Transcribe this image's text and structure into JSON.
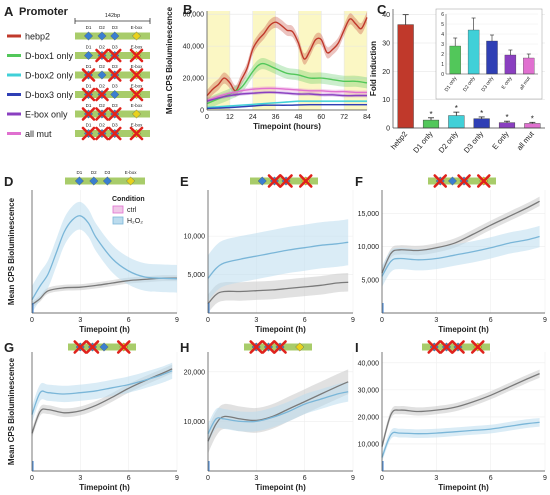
{
  "panel_a": {
    "letter": "A",
    "heading": "Promoter",
    "scale_label": "142bp",
    "rows": [
      {
        "label": "hebp2",
        "color": "#c0392b",
        "d1": "ok",
        "d2": "ok",
        "d3": "ok",
        "ebox": "ok"
      },
      {
        "label": "D-box1 only",
        "color": "#52c75a",
        "d1": "ok",
        "d2": "mut",
        "d3": "mut",
        "ebox": "mut"
      },
      {
        "label": "D-box2 only",
        "color": "#40d0d8",
        "d1": "mut",
        "d2": "ok",
        "d3": "mut",
        "ebox": "mut"
      },
      {
        "label": "D-box3 only",
        "color": "#2f3fb5",
        "d1": "mut",
        "d2": "mut",
        "d3": "ok",
        "ebox": "mut"
      },
      {
        "label": "E-box only",
        "color": "#8a3fc0",
        "d1": "mut",
        "d2": "mut",
        "d3": "mut",
        "ebox": "ok"
      },
      {
        "label": "all mut",
        "color": "#e070d0",
        "d1": "mut",
        "d2": "mut",
        "d3": "mut",
        "ebox": "mut"
      }
    ],
    "site_labels": {
      "d1": "D1",
      "d2": "D2",
      "d3": "D3",
      "ebox": "E-box"
    },
    "colors": {
      "bar": "#a8cc6a",
      "dbox": "#3a7fd0",
      "ebox": "#e8d21c",
      "cross": "#e0221c"
    }
  },
  "chart_data": [
    {
      "id": "B",
      "type": "line",
      "xlabel": "Timepoint (hours)",
      "ylabel": "Mean CPS Bioluminescence",
      "xlim": [
        0,
        84
      ],
      "ylim": [
        0,
        62000
      ],
      "xticks": [
        0,
        12,
        24,
        36,
        48,
        60,
        72,
        84
      ],
      "yticks": [
        0,
        20000,
        40000,
        60000
      ],
      "ytick_labels": [
        "0",
        "20,000",
        "40,000",
        "60,000"
      ],
      "light_bands": [
        [
          0,
          12
        ],
        [
          24,
          36
        ],
        [
          48,
          60
        ],
        [
          72,
          84
        ]
      ],
      "light_band_color": "#fbf7c4",
      "series": [
        {
          "color": "#c0392b",
          "x": [
            0,
            3,
            6,
            9,
            12,
            15,
            18,
            21,
            24,
            27,
            30,
            33,
            36,
            39,
            42,
            45,
            48,
            51,
            54,
            57,
            60,
            63,
            66,
            69,
            72,
            75,
            78,
            81,
            84
          ],
          "y": [
            9000,
            13000,
            16000,
            20000,
            17000,
            12000,
            19000,
            26000,
            38000,
            44000,
            48000,
            53000,
            55000,
            53000,
            50000,
            49000,
            42000,
            32000,
            37000,
            44000,
            44000,
            36000,
            38000,
            42000,
            50000,
            57000,
            54000,
            51000,
            58000
          ],
          "band": 3500
        },
        {
          "color": "#52c75a",
          "x": [
            0,
            6,
            12,
            18,
            24,
            27,
            30,
            36,
            42,
            48,
            54,
            60,
            66,
            72,
            78,
            84
          ],
          "y": [
            4000,
            7000,
            10000,
            14000,
            24000,
            28000,
            29000,
            26000,
            23000,
            22000,
            20000,
            20000,
            19000,
            18000,
            18000,
            17000
          ],
          "band": 3500
        },
        {
          "color": "#e070d0",
          "x": [
            0,
            6,
            12,
            18,
            24,
            30,
            36,
            42,
            48,
            54,
            60,
            66,
            72,
            78,
            84
          ],
          "y": [
            6000,
            8500,
            10500,
            12000,
            13000,
            13500,
            13500,
            13000,
            12500,
            12000,
            12000,
            11500,
            11500,
            11000,
            11000
          ],
          "band": 1200
        },
        {
          "color": "#8a3fc0",
          "x": [
            0,
            6,
            12,
            18,
            24,
            30,
            36,
            42,
            48,
            54,
            60,
            66,
            72,
            78,
            84
          ],
          "y": [
            5500,
            7500,
            9000,
            10000,
            10500,
            11000,
            11000,
            10500,
            10000,
            10000,
            9500,
            9500,
            9000,
            9000,
            9000
          ],
          "band": 1000
        },
        {
          "color": "#40d0d8",
          "x": [
            0,
            6,
            12,
            18,
            24,
            30,
            36,
            42,
            48,
            54,
            60,
            66,
            72,
            78,
            84
          ],
          "y": [
            1500,
            2000,
            2500,
            3000,
            3500,
            4000,
            4500,
            5000,
            5500,
            5500,
            5500,
            5500,
            5500,
            5500,
            5500
          ],
          "band": 600
        },
        {
          "color": "#2f3fb5",
          "x": [
            0,
            6,
            12,
            18,
            24,
            30,
            36,
            42,
            48,
            54,
            60,
            66,
            72,
            78,
            84
          ],
          "y": [
            1000,
            1200,
            1500,
            2000,
            2500,
            3000,
            3000,
            3000,
            3200,
            3300,
            3300,
            3300,
            3300,
            3300,
            3300
          ],
          "band": 500
        }
      ]
    },
    {
      "id": "C",
      "type": "bar",
      "ylabel": "Fold induction",
      "ylim": [
        0,
        42
      ],
      "yticks": [
        0,
        10,
        20,
        30,
        40
      ],
      "categories": [
        "hebp2",
        "D1 only",
        "D2 only",
        "D3 only",
        "E only",
        "all mut"
      ],
      "values": [
        36.5,
        2.8,
        4.4,
        3.3,
        1.9,
        1.6
      ],
      "errors": [
        3.5,
        0.8,
        1.2,
        0.6,
        0.5,
        0.4
      ],
      "colors": [
        "#c0392b",
        "#52c75a",
        "#40d0d8",
        "#2f3fb5",
        "#8a3fc0",
        "#e070d0"
      ],
      "stars": [
        "",
        "*",
        "*",
        "*",
        "*",
        "*"
      ],
      "inset": {
        "ylim": [
          0,
          6
        ],
        "yticks": [
          0,
          1,
          2,
          3,
          4,
          5,
          6
        ],
        "categories": [
          "D1 only",
          "D2 only",
          "D3 only",
          "E only",
          "all mut"
        ],
        "values": [
          2.8,
          4.4,
          3.3,
          1.9,
          1.6
        ],
        "errors": [
          0.8,
          1.2,
          0.6,
          0.5,
          0.4
        ]
      }
    },
    {
      "id": "D",
      "type": "line",
      "xlabel": "Timepoint (h)",
      "ylabel": "Mean CPS Bioluminescence",
      "xlim": [
        0,
        9
      ],
      "ylim": [
        0,
        20500
      ],
      "xticks": [
        0,
        3,
        6,
        9
      ],
      "yticks": [],
      "ytick_labels": [],
      "legend": {
        "title": "Condition",
        "ctrl": "ctrl",
        "h2o2": "H₂O₂"
      },
      "series": [
        {
          "name": "ctrl",
          "color": "#7a7a7a",
          "fill": "#c8c8c8",
          "x": [
            0,
            0.5,
            1,
            2,
            3,
            4,
            5,
            6,
            7,
            8,
            9
          ],
          "y": [
            1400,
            2400,
            3700,
            4200,
            4300,
            4600,
            5000,
            5400,
            5600,
            5800,
            5800
          ],
          "band": 500
        },
        {
          "name": "H₂O₂",
          "color": "#7ab6d8",
          "fill": "#bcdcee",
          "x": [
            0,
            0.5,
            1,
            1.5,
            2,
            2.5,
            3,
            3.5,
            4,
            5,
            6,
            7,
            8,
            9
          ],
          "y": [
            2200,
            4500,
            6500,
            10000,
            13500,
            15500,
            16200,
            15000,
            12500,
            9000,
            7000,
            6000,
            5800,
            5700
          ],
          "band": 2300
        }
      ]
    },
    {
      "id": "E",
      "type": "line",
      "xlabel": "Timepoint (h)",
      "xlim": [
        0,
        9
      ],
      "ylim": [
        0,
        16000
      ],
      "xticks": [
        0,
        3,
        6,
        9
      ],
      "yticks": [
        5000,
        10000
      ],
      "ytick_labels": [
        "5,000",
        "10,000"
      ],
      "series": [
        {
          "name": "ctrl",
          "color": "#7a7a7a",
          "fill": "#c8c8c8",
          "x": [
            0,
            0.5,
            1,
            2,
            3,
            4,
            5,
            6,
            7,
            8,
            8.7
          ],
          "y": [
            1200,
            2400,
            2800,
            2800,
            2900,
            3000,
            3200,
            3400,
            3600,
            3900,
            4000
          ],
          "band": 1200
        },
        {
          "name": "H₂O₂",
          "color": "#7ab6d8",
          "fill": "#bcdcee",
          "x": [
            0,
            0.5,
            1,
            2,
            3,
            4,
            5,
            6,
            7,
            8,
            8.7
          ],
          "y": [
            4500,
            5800,
            6500,
            7000,
            7400,
            7800,
            8200,
            8500,
            8800,
            9000,
            9200
          ],
          "band": 3000
        }
      ]
    },
    {
      "id": "F",
      "type": "line",
      "xlabel": "Timepoint (h)",
      "xlim": [
        0,
        9
      ],
      "ylim": [
        0,
        18500
      ],
      "xticks": [
        0,
        3,
        6,
        9
      ],
      "yticks": [
        5000,
        10000,
        15000
      ],
      "ytick_labels": [
        "5,000",
        "10,000",
        "15,000"
      ],
      "series": [
        {
          "name": "ctrl",
          "color": "#7a7a7a",
          "fill": "#c8c8c8",
          "x": [
            0,
            0.5,
            1,
            2,
            3,
            4,
            5,
            6,
            7,
            8,
            8.7
          ],
          "y": [
            6000,
            9000,
            9500,
            9400,
            9800,
            10500,
            11800,
            13200,
            14500,
            15800,
            16800
          ],
          "band": 700
        },
        {
          "name": "H₂O₂",
          "color": "#7ab6d8",
          "fill": "#bcdcee",
          "x": [
            0,
            0.5,
            1,
            2,
            3,
            4,
            5,
            6,
            7,
            8,
            8.7
          ],
          "y": [
            5500,
            7800,
            8200,
            8000,
            8200,
            8700,
            9200,
            9800,
            10500,
            11000,
            11500
          ],
          "band": 1600
        }
      ]
    },
    {
      "id": "G",
      "type": "line",
      "xlabel": "Timepoint (h)",
      "ylabel": "Mean CPS Bioluminescence",
      "xlim": [
        0,
        9
      ],
      "ylim": [
        0,
        19000
      ],
      "xticks": [
        0,
        3,
        6,
        9
      ],
      "yticks": [],
      "ytick_labels": [],
      "series": [
        {
          "name": "ctrl",
          "color": "#7a7a7a",
          "fill": "#c8c8c8",
          "x": [
            0,
            0.5,
            1,
            2,
            3,
            4,
            5,
            6,
            7,
            8,
            8.7
          ],
          "y": [
            6000,
            9500,
            9800,
            9300,
            9600,
            10500,
            11800,
            13200,
            14400,
            15500,
            16300
          ],
          "band": 700
        },
        {
          "name": "H₂O₂",
          "color": "#7ab6d8",
          "fill": "#bcdcee",
          "x": [
            0,
            0.5,
            1,
            2,
            3,
            4,
            5,
            6,
            7,
            8,
            8.7
          ],
          "y": [
            9000,
            12500,
            12500,
            12300,
            12500,
            12800,
            13300,
            13800,
            14500,
            15300,
            16000
          ],
          "band": 1300
        }
      ]
    },
    {
      "id": "H",
      "type": "line",
      "xlabel": "Timepoint (h)",
      "xlim": [
        0,
        9
      ],
      "ylim": [
        0,
        24000
      ],
      "xticks": [
        0,
        3,
        6,
        9
      ],
      "yticks": [
        10000,
        20000
      ],
      "ytick_labels": [
        "10,000",
        "20,000"
      ],
      "series": [
        {
          "name": "ctrl",
          "color": "#7a7a7a",
          "fill": "#c8c8c8",
          "x": [
            0,
            0.5,
            1,
            2,
            3,
            4,
            5,
            6,
            7,
            8,
            8.7
          ],
          "y": [
            6000,
            9500,
            11000,
            10500,
            10200,
            11000,
            12500,
            14000,
            15500,
            17000,
            18000
          ],
          "band": 2500
        },
        {
          "name": "H₂O₂",
          "color": "#7ab6d8",
          "fill": "#bcdcee",
          "x": [
            0,
            0.5,
            1,
            2,
            3,
            4,
            5,
            6,
            7,
            8,
            8.7
          ],
          "y": [
            7500,
            10500,
            10500,
            10000,
            10000,
            10800,
            12000,
            13500,
            14500,
            15500,
            16000
          ],
          "band": 2000
        }
      ]
    },
    {
      "id": "I",
      "type": "line",
      "xlabel": "Timepoint (h)",
      "xlim": [
        0,
        9
      ],
      "ylim": [
        0,
        44000
      ],
      "xticks": [
        0,
        3,
        6,
        9
      ],
      "yticks": [
        10000,
        20000,
        30000,
        40000
      ],
      "ytick_labels": [
        "10,000",
        "20,000",
        "30,000",
        "40,000"
      ],
      "series": [
        {
          "name": "ctrl",
          "color": "#7a7a7a",
          "fill": "#c8c8c8",
          "x": [
            0,
            0.5,
            1,
            2,
            3,
            4,
            5,
            6,
            7,
            8,
            8.7
          ],
          "y": [
            9000,
            21000,
            22500,
            22000,
            22500,
            23500,
            25500,
            28000,
            31000,
            34000,
            36000
          ],
          "band": 1500
        },
        {
          "name": "H₂O₂",
          "color": "#7ab6d8",
          "fill": "#bcdcee",
          "x": [
            0,
            0.5,
            1,
            2,
            3,
            4,
            5,
            6,
            7,
            8,
            8.7
          ],
          "y": [
            5000,
            13500,
            14000,
            13800,
            14000,
            14500,
            15000,
            15500,
            16500,
            17500,
            18000
          ],
          "band": 1600
        }
      ]
    }
  ],
  "construct_icons": [
    {
      "id": "D",
      "d1": "ok",
      "d2": "ok",
      "d3": "ok",
      "ebox": "ok",
      "labels": true
    },
    {
      "id": "E",
      "d1": "ok",
      "d2": "mut",
      "d3": "mut",
      "ebox": "mut",
      "labels": false
    },
    {
      "id": "F",
      "d1": "mut",
      "d2": "ok",
      "d3": "mut",
      "ebox": "mut",
      "labels": false
    },
    {
      "id": "G",
      "d1": "mut",
      "d2": "mut",
      "d3": "ok",
      "ebox": "mut",
      "labels": false
    },
    {
      "id": "H",
      "d1": "mut",
      "d2": "mut",
      "d3": "mut",
      "ebox": "ok",
      "labels": false
    },
    {
      "id": "I",
      "d1": "mut",
      "d2": "mut",
      "d3": "mut",
      "ebox": "mut",
      "labels": false
    }
  ]
}
